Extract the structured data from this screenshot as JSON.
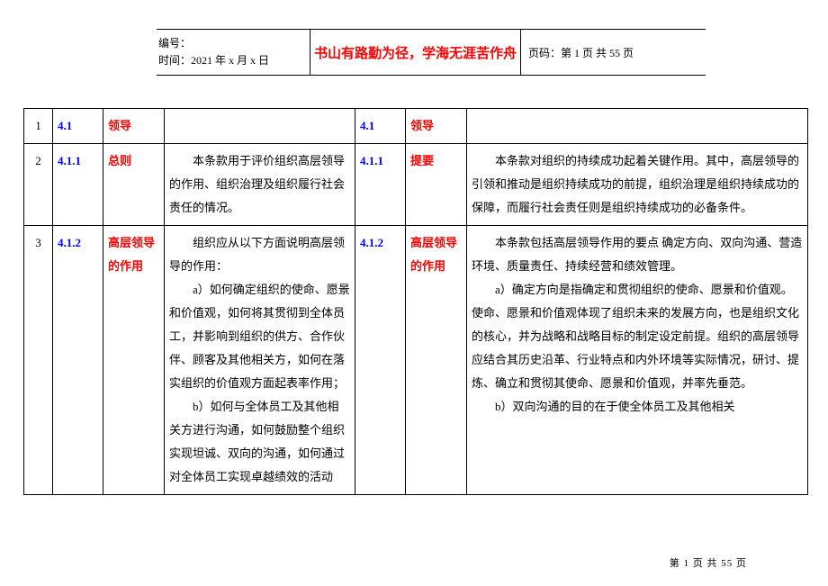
{
  "header": {
    "line1": "编号：",
    "line2": "时间：2021 年 x 月 x 日",
    "motto": "书山有路勤为径，学海无涯苦作舟",
    "pageinfo": "页码：第 1 页 共 55 页"
  },
  "rows": [
    {
      "idx": "1",
      "code1": "4.1",
      "name1": "领导",
      "text1": "",
      "code2": "4.1",
      "name2": "领导",
      "text2": ""
    },
    {
      "idx": "2",
      "code1": "4.1.1",
      "name1": "总则",
      "text1": "　　本条款用于评价组织高层领导的作用、组织治理及组织履行社会责任的情况。",
      "code2": "4.1.1",
      "name2": "提要",
      "text2": "　　本条款对组织的持续成功起着关键作用。其中，高层领导的引领和推动是组织持续成功的前提，组织治理是组织持续成功的保障，而履行社会责任则是组织持续成功的必备条件。"
    },
    {
      "idx": "3",
      "code1": "4.1.2",
      "name1": "高层领导的作用",
      "text1_p1": "　　组织应从以下方面说明高层领导的作用：",
      "text1_p2": "　　a）如何确定组织的使命、愿景和价值观，如何将其贯彻到全体员工，并影响到组织的供方、合作伙伴、顾客及其他相关方，如何在落实组织的价值观方面起表率作用；",
      "text1_p3": "　　b）如何与全体员工及其他相关方进行沟通，如何鼓励整个组织实现坦诚、双向的沟通，如何通过对全体员工实现卓越绩效的活动",
      "code2": "4.1.2",
      "name2": "高层领导的作用",
      "text2_p1": "　　本条款包括高层领导作用的要点 确定方向、双向沟通、营造环境、质量责任、持续经营和绩效管理。",
      "text2_p2": "　　a）确定方向是指确定和贯彻组织的使命、愿景和价值观。使命、愿景和价值观体现了组织未来的发展方向，也是组织文化的核心，并为战略和战略目标的制定设定前提。组织的高层领导应结合其历史沿革、行业特点和内外环境等实际情况，研讨、提炼、确立和贯彻其使命、愿景和价值观，并率先垂范。",
      "text2_p3": "　　b）双向沟通的目的在于使全体员工及其他相关"
    }
  ],
  "footer": "第 1 页 共 55 页"
}
